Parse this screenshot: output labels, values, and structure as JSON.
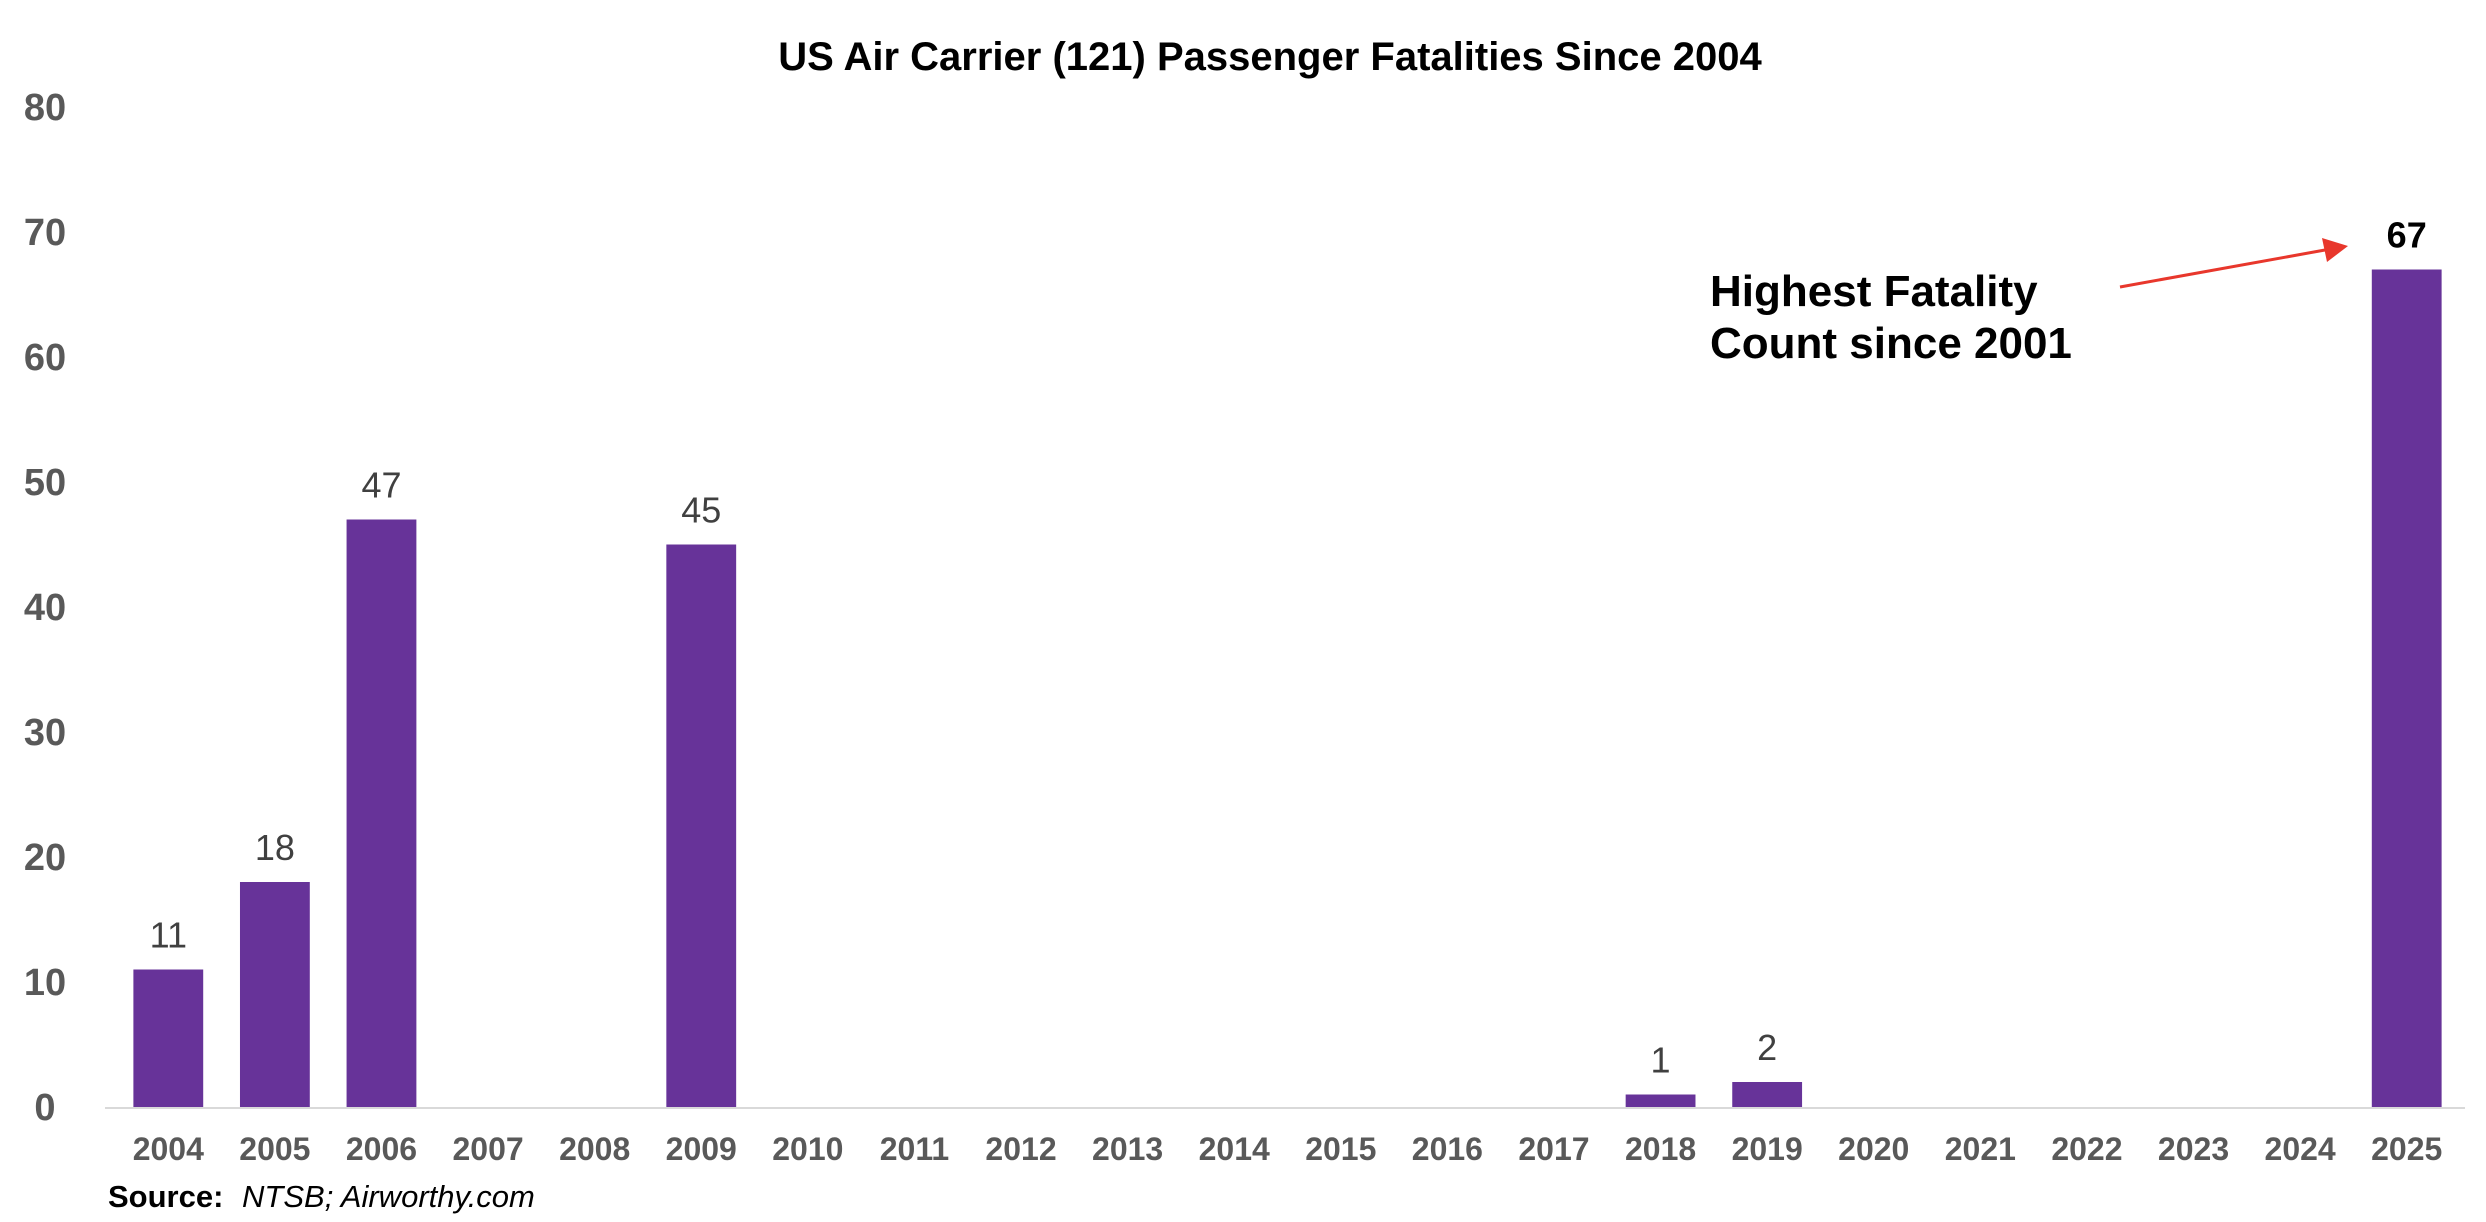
{
  "chart_data": {
    "type": "bar",
    "title": "US Air Carrier (121) Passenger Fatalities Since 2004",
    "xlabel": "",
    "ylabel": "",
    "ylim": [
      0,
      80
    ],
    "yticks": [
      "0",
      "10",
      "20",
      "30",
      "40",
      "50",
      "60",
      "70",
      "80"
    ],
    "categories": [
      "2004",
      "2005",
      "2006",
      "2007",
      "2008",
      "2009",
      "2010",
      "2011",
      "2012",
      "2013",
      "2014",
      "2015",
      "2016",
      "2017",
      "2018",
      "2019",
      "2020",
      "2021",
      "2022",
      "2023",
      "2024",
      "2025"
    ],
    "values": [
      11,
      18,
      47,
      0,
      0,
      45,
      0,
      0,
      0,
      0,
      0,
      0,
      0,
      0,
      1,
      2,
      0,
      0,
      0,
      0,
      0,
      67
    ],
    "data_labels": [
      "11",
      "18",
      "47",
      "",
      "",
      "45",
      "",
      "",
      "",
      "",
      "",
      "",
      "",
      "",
      "1",
      "2",
      "",
      "",
      "",
      "",
      "",
      "67"
    ],
    "grid": false,
    "legend": "none",
    "annotation": {
      "lines": [
        "Highest Fatality",
        "Count since 2001"
      ],
      "target_category": "2025",
      "arrow_color": "#e8372c"
    },
    "source": {
      "label": "Source:",
      "text": "NTSB; Airworthy.com"
    }
  },
  "colors": {
    "bar": "#673399",
    "axis": "#d9d9d9",
    "tick_text": "#595959",
    "arrow": "#e8372c"
  }
}
